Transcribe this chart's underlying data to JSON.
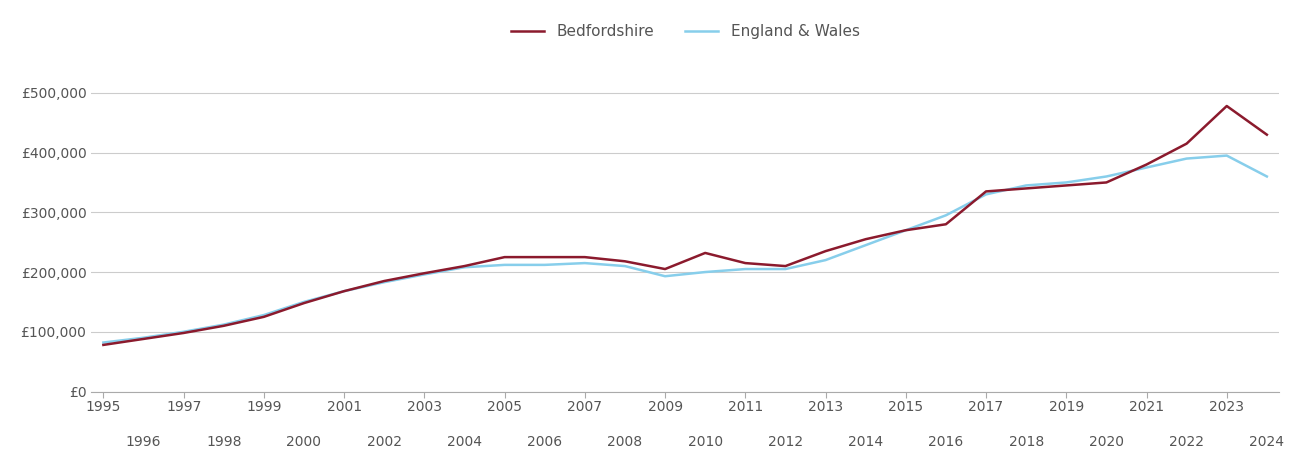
{
  "bedfordshire": {
    "years": [
      1995,
      1996,
      1997,
      1998,
      1999,
      2000,
      2001,
      2002,
      2003,
      2004,
      2005,
      2006,
      2007,
      2008,
      2009,
      2010,
      2011,
      2012,
      2013,
      2014,
      2015,
      2016,
      2017,
      2018,
      2019,
      2020,
      2021,
      2022,
      2023,
      2024
    ],
    "values": [
      78000,
      88000,
      98000,
      110000,
      125000,
      148000,
      168000,
      185000,
      198000,
      210000,
      225000,
      225000,
      225000,
      218000,
      205000,
      232000,
      215000,
      210000,
      235000,
      255000,
      270000,
      280000,
      335000,
      340000,
      345000,
      350000,
      380000,
      415000,
      478000,
      430000
    ]
  },
  "england_wales": {
    "years": [
      1995,
      1996,
      1997,
      1998,
      1999,
      2000,
      2001,
      2002,
      2003,
      2004,
      2005,
      2006,
      2007,
      2008,
      2009,
      2010,
      2011,
      2012,
      2013,
      2014,
      2015,
      2016,
      2017,
      2018,
      2019,
      2020,
      2021,
      2022,
      2023,
      2024
    ],
    "values": [
      82000,
      90000,
      100000,
      112000,
      128000,
      150000,
      168000,
      183000,
      196000,
      208000,
      212000,
      212000,
      215000,
      210000,
      193000,
      200000,
      205000,
      205000,
      220000,
      245000,
      270000,
      295000,
      330000,
      345000,
      350000,
      360000,
      375000,
      390000,
      395000,
      360000
    ]
  },
  "bedfordshire_color": "#8B1A2D",
  "england_wales_color": "#87CEEB",
  "bedfordshire_label": "Bedfordshire",
  "england_wales_label": "England & Wales",
  "ylim": [
    0,
    550000
  ],
  "yticks": [
    0,
    100000,
    200000,
    300000,
    400000,
    500000
  ],
  "ytick_labels": [
    "£0",
    "£100,000",
    "£200,000",
    "£300,000",
    "£400,000",
    "£500,000"
  ],
  "xmin": 1995,
  "xmax": 2024,
  "background_color": "#ffffff",
  "grid_color": "#cccccc",
  "line_width": 1.8,
  "legend_fontsize": 11,
  "tick_fontsize": 10,
  "tick_color": "#555555"
}
